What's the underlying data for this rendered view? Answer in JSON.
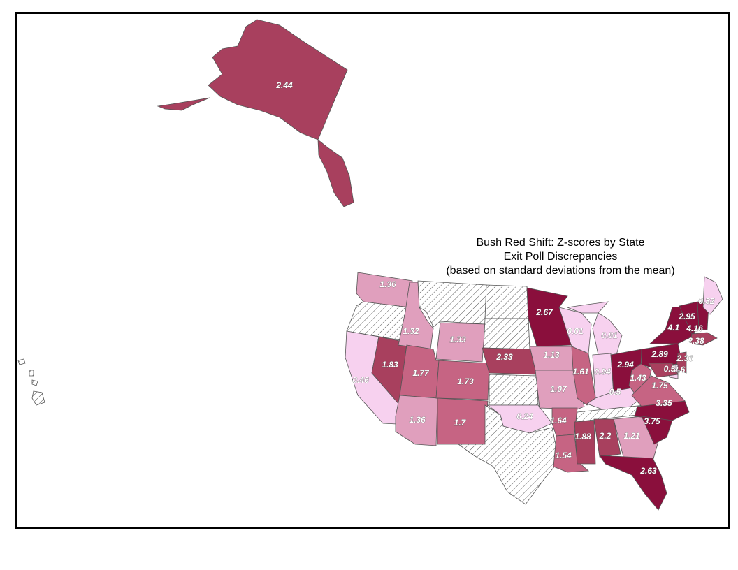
{
  "title": {
    "line1": "Bush Red Shift:  Z-scores by State",
    "line2": "Exit Poll Discrepancies",
    "line3": "(based on standard deviations from the mean)"
  },
  "colors": {
    "none": "hatched",
    "class1": "#f7d1ef",
    "class2": "#e09fbd",
    "class3": "#c66483",
    "class4": "#a8405e",
    "class5": "#8a0f3c"
  },
  "states": [
    {
      "name": "AK",
      "value": "2.44",
      "class": "class4"
    },
    {
      "name": "WA",
      "value": "1.36",
      "class": "class2"
    },
    {
      "name": "OR",
      "value": "",
      "class": "none"
    },
    {
      "name": "CA",
      "value": "0.46",
      "class": "class1"
    },
    {
      "name": "NV",
      "value": "1.83",
      "class": "class4"
    },
    {
      "name": "ID",
      "value": "1.32",
      "class": "class2"
    },
    {
      "name": "MT",
      "value": "",
      "class": "none"
    },
    {
      "name": "WY",
      "value": "1.33",
      "class": "class2"
    },
    {
      "name": "UT",
      "value": "1.77",
      "class": "class3"
    },
    {
      "name": "AZ",
      "value": "1.36",
      "class": "class2"
    },
    {
      "name": "CO",
      "value": "1.73",
      "class": "class3"
    },
    {
      "name": "NM",
      "value": "1.7",
      "class": "class3"
    },
    {
      "name": "ND",
      "value": "",
      "class": "none"
    },
    {
      "name": "SD",
      "value": "",
      "class": "none"
    },
    {
      "name": "NE",
      "value": "2.33",
      "class": "class4"
    },
    {
      "name": "KS",
      "value": "",
      "class": "none"
    },
    {
      "name": "OK",
      "value": "0.24",
      "class": "class1"
    },
    {
      "name": "TX",
      "value": "",
      "class": "none"
    },
    {
      "name": "MN",
      "value": "2.67",
      "class": "class5"
    },
    {
      "name": "IA",
      "value": "1.13",
      "class": "class2"
    },
    {
      "name": "MO",
      "value": "1.07",
      "class": "class2"
    },
    {
      "name": "AR",
      "value": "1.64",
      "class": "class3"
    },
    {
      "name": "LA",
      "value": "1.54",
      "class": "class3"
    },
    {
      "name": "WI",
      "value": "0.01",
      "class": "class1"
    },
    {
      "name": "IL",
      "value": "1.61",
      "class": "class3"
    },
    {
      "name": "MI",
      "value": "0.81",
      "class": "class1"
    },
    {
      "name": "IN",
      "value": "0.94",
      "class": "class1"
    },
    {
      "name": "KY",
      "value": "0.5",
      "class": "class1"
    },
    {
      "name": "TN",
      "value": "",
      "class": "none"
    },
    {
      "name": "MS",
      "value": "1.88",
      "class": "class4"
    },
    {
      "name": "AL",
      "value": "2.2",
      "class": "class4"
    },
    {
      "name": "GA",
      "value": "1.21",
      "class": "class2"
    },
    {
      "name": "FL",
      "value": "2.63",
      "class": "class5"
    },
    {
      "name": "OH",
      "value": "2.94",
      "class": "class5"
    },
    {
      "name": "WV",
      "value": "1.43",
      "class": "class3"
    },
    {
      "name": "VA",
      "value": "1.75",
      "class": "class3"
    },
    {
      "name": "NC",
      "value": "3.35",
      "class": "class5"
    },
    {
      "name": "SC",
      "value": "3.75",
      "class": "class5"
    },
    {
      "name": "PA",
      "value": "2.89",
      "class": "class5"
    },
    {
      "name": "NY",
      "value": "4.1",
      "class": "class5"
    },
    {
      "name": "VT",
      "value": "2.95",
      "class": "class5"
    },
    {
      "name": "NH",
      "value": "4.16",
      "class": "class5"
    },
    {
      "name": "ME",
      "value": "0.32",
      "class": "class1"
    },
    {
      "name": "MA",
      "value": "2.38",
      "class": "class4"
    },
    {
      "name": "NJ",
      "value": "2.36",
      "class": "class4"
    },
    {
      "name": "DE",
      "value": "0.5",
      "class": "class1"
    },
    {
      "name": "MD",
      "value": "2.6",
      "class": "class4"
    },
    {
      "name": "HI",
      "value": "",
      "class": "none"
    }
  ]
}
